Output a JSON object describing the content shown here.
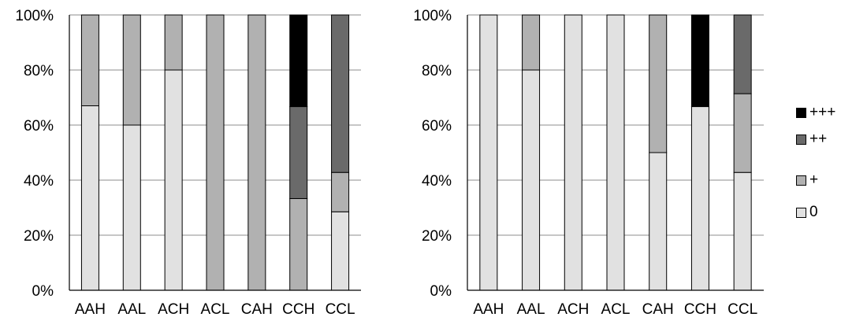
{
  "chart_data": [
    {
      "type": "bar",
      "stacked": true,
      "categories": [
        "AAH",
        "AAL",
        "ACH",
        "ACL",
        "CAH",
        "CCH",
        "CCL"
      ],
      "y_ticks": [
        "0%",
        "20%",
        "40%",
        "60%",
        "80%",
        "100%"
      ],
      "ylim": [
        0,
        100
      ],
      "grid": true,
      "series": [
        {
          "name": "0",
          "color": "#e1e1e1",
          "values": [
            67,
            60,
            80,
            0,
            0,
            0,
            28.5
          ]
        },
        {
          "name": "+",
          "color": "#b1b1b1",
          "values": [
            33,
            40,
            20,
            100,
            100,
            33.3,
            14.3
          ]
        },
        {
          "name": "++",
          "color": "#6a6a6a",
          "values": [
            0,
            0,
            0,
            0,
            0,
            33.4,
            57.2
          ]
        },
        {
          "name": "+++",
          "color": "#000000",
          "values": [
            0,
            0,
            0,
            0,
            0,
            33.3,
            0
          ]
        }
      ]
    },
    {
      "type": "bar",
      "stacked": true,
      "categories": [
        "AAH",
        "AAL",
        "ACH",
        "ACL",
        "CAH",
        "CCH",
        "CCL"
      ],
      "y_ticks": [
        "0%",
        "20%",
        "40%",
        "60%",
        "80%",
        "100%"
      ],
      "ylim": [
        0,
        100
      ],
      "grid": true,
      "series": [
        {
          "name": "0",
          "color": "#e1e1e1",
          "values": [
            100,
            80,
            100,
            100,
            50,
            66.7,
            42.8
          ]
        },
        {
          "name": "+",
          "color": "#b1b1b1",
          "values": [
            0,
            20,
            0,
            0,
            50,
            0,
            28.6
          ]
        },
        {
          "name": "++",
          "color": "#6a6a6a",
          "values": [
            0,
            0,
            0,
            0,
            0,
            0,
            28.6
          ]
        },
        {
          "name": "+++",
          "color": "#000000",
          "values": [
            0,
            0,
            0,
            0,
            0,
            33.3,
            0
          ]
        }
      ]
    }
  ],
  "legend": {
    "placement": "right",
    "items": [
      {
        "label": "+++",
        "color": "#000000"
      },
      {
        "label": "++",
        "color": "#6a6a6a"
      },
      {
        "label": "+",
        "color": "#b1b1b1"
      },
      {
        "label": "0",
        "color": "#e1e1e1"
      }
    ]
  }
}
